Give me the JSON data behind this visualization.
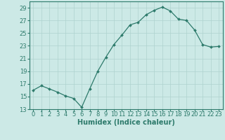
{
  "x": [
    0,
    1,
    2,
    3,
    4,
    5,
    6,
    7,
    8,
    9,
    10,
    11,
    12,
    13,
    14,
    15,
    16,
    17,
    18,
    19,
    20,
    21,
    22,
    23
  ],
  "y": [
    16.0,
    16.7,
    16.2,
    15.7,
    15.1,
    14.7,
    13.3,
    16.2,
    19.0,
    21.2,
    23.2,
    24.7,
    26.3,
    26.7,
    27.9,
    28.6,
    29.1,
    28.5,
    27.2,
    27.0,
    25.5,
    23.2,
    22.8,
    22.9
  ],
  "line_color": "#2d7a6b",
  "marker": "D",
  "marker_size": 2.0,
  "bg_color": "#cce9e6",
  "grid_color": "#aed3cf",
  "xlabel": "Humidex (Indice chaleur)",
  "xlim": [
    -0.5,
    23.5
  ],
  "ylim": [
    13,
    30
  ],
  "yticks": [
    13,
    15,
    17,
    19,
    21,
    23,
    25,
    27,
    29
  ],
  "xticks": [
    0,
    1,
    2,
    3,
    4,
    5,
    6,
    7,
    8,
    9,
    10,
    11,
    12,
    13,
    14,
    15,
    16,
    17,
    18,
    19,
    20,
    21,
    22,
    23
  ],
  "tick_color": "#2d7a6b",
  "label_fontsize": 7,
  "tick_fontsize": 6
}
